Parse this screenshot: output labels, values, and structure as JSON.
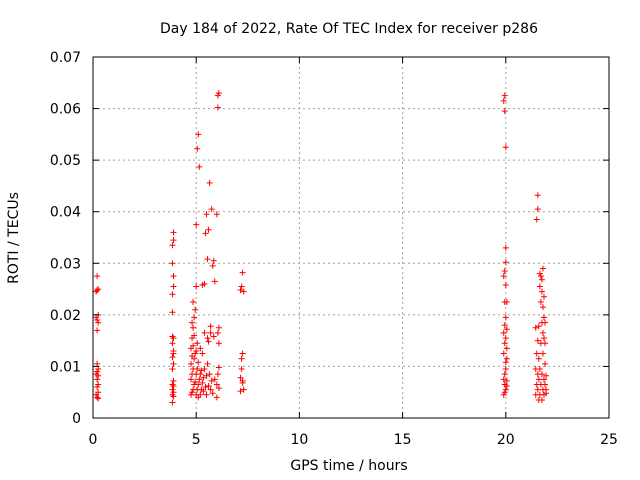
{
  "chart_data": {
    "type": "scatter",
    "title": "Day 184 of 2022, Rate Of TEC Index for receiver p286",
    "xlabel": "GPS time / hours",
    "ylabel": "ROTI / TECUs",
    "xlim": [
      0,
      25
    ],
    "ylim": [
      0,
      0.07
    ],
    "xticks": [
      0,
      5,
      10,
      15,
      20,
      25
    ],
    "yticks": [
      0,
      0.01,
      0.02,
      0.03,
      0.04,
      0.05,
      0.06,
      0.07
    ],
    "grid": true,
    "marker": "plus",
    "color": "#ff0000",
    "series": [
      {
        "x": [
          0.15,
          0.15,
          0.15,
          0.15,
          0.2,
          0.2,
          0.2,
          0.2,
          0.2,
          0.2,
          0.2,
          0.2,
          0.2,
          0.25,
          0.25,
          0.25,
          0.25,
          0.25,
          0.25,
          0.25,
          0.25,
          3.85,
          3.85,
          3.85,
          3.85,
          3.85,
          3.85,
          3.85,
          3.85,
          3.85,
          3.85,
          3.85,
          3.85,
          3.9,
          3.9,
          3.9,
          3.9,
          3.9,
          3.9,
          3.9,
          3.9,
          3.9,
          3.9,
          3.9,
          3.9,
          4.75,
          4.75,
          4.75,
          4.75,
          4.8,
          4.8,
          4.8,
          4.8,
          4.8,
          4.85,
          4.85,
          4.85,
          4.85,
          4.85,
          4.9,
          4.9,
          4.9,
          4.9,
          4.95,
          4.95,
          4.95,
          5.0,
          5.0,
          5.0,
          5.0,
          5.0,
          5.05,
          5.05,
          5.05,
          5.05,
          5.1,
          5.1,
          5.1,
          5.1,
          5.15,
          5.15,
          5.2,
          5.2,
          5.2,
          5.25,
          5.25,
          5.3,
          5.3,
          5.3,
          5.35,
          5.35,
          5.4,
          5.4,
          5.4,
          5.45,
          5.45,
          5.5,
          5.5,
          5.5,
          5.55,
          5.55,
          5.55,
          5.6,
          5.6,
          5.6,
          5.65,
          5.65,
          5.7,
          5.7,
          5.7,
          5.75,
          5.75,
          5.8,
          5.8,
          5.85,
          5.85,
          5.9,
          5.9,
          6.0,
          6.0,
          6.0,
          6.05,
          6.05,
          6.05,
          6.05,
          6.1,
          6.1,
          6.1,
          6.1,
          6.1,
          7.15,
          7.15,
          7.15,
          7.2,
          7.2,
          7.2,
          7.25,
          7.25,
          7.25,
          7.25,
          7.3,
          7.3,
          19.9,
          19.9,
          19.9,
          19.9,
          19.9,
          19.9,
          19.95,
          19.95,
          19.95,
          19.95,
          19.95,
          19.95,
          19.95,
          19.95,
          19.95,
          20.0,
          20.0,
          20.0,
          20.0,
          20.0,
          20.0,
          20.0,
          20.0,
          20.0,
          20.05,
          20.05,
          20.05,
          20.05,
          20.05,
          20.05,
          21.45,
          21.45,
          21.45,
          21.5,
          21.5,
          21.5,
          21.55,
          21.55,
          21.55,
          21.55,
          21.55,
          21.6,
          21.6,
          21.6,
          21.6,
          21.65,
          21.65,
          21.65,
          21.65,
          21.7,
          21.7,
          21.7,
          21.7,
          21.75,
          21.75,
          21.75,
          21.75,
          21.75,
          21.8,
          21.8,
          21.8,
          21.8,
          21.8,
          21.85,
          21.85,
          21.85,
          21.85,
          21.85,
          21.9,
          21.9,
          21.9,
          21.9,
          21.95,
          21.95,
          21.95
        ],
        "y": [
          0.0045,
          0.0085,
          0.0195,
          0.0245,
          0.004,
          0.006,
          0.0075,
          0.009,
          0.0105,
          0.017,
          0.019,
          0.0248,
          0.0275,
          0.0038,
          0.005,
          0.0065,
          0.0082,
          0.0095,
          0.0185,
          0.02,
          0.025,
          0.003,
          0.0045,
          0.0055,
          0.0065,
          0.0095,
          0.0118,
          0.0145,
          0.0158,
          0.0205,
          0.024,
          0.03,
          0.0335,
          0.0042,
          0.005,
          0.0062,
          0.0072,
          0.0105,
          0.0125,
          0.013,
          0.0155,
          0.0255,
          0.0275,
          0.0345,
          0.036,
          0.0045,
          0.0075,
          0.0105,
          0.0135,
          0.005,
          0.0085,
          0.012,
          0.0155,
          0.0185,
          0.0055,
          0.0095,
          0.014,
          0.0175,
          0.0225,
          0.0065,
          0.0115,
          0.016,
          0.0195,
          0.007,
          0.0125,
          0.021,
          0.0045,
          0.0085,
          0.013,
          0.0255,
          0.0375,
          0.0055,
          0.0095,
          0.0145,
          0.0522,
          0.004,
          0.0065,
          0.0108,
          0.055,
          0.0075,
          0.0487,
          0.0045,
          0.0085,
          0.0135,
          0.0055,
          0.0092,
          0.0068,
          0.0125,
          0.0258,
          0.0052,
          0.0078,
          0.0095,
          0.0165,
          0.026,
          0.006,
          0.0358,
          0.0045,
          0.0082,
          0.0395,
          0.0105,
          0.0155,
          0.0308,
          0.0062,
          0.0148,
          0.0365,
          0.0085,
          0.0456,
          0.0055,
          0.0165,
          0.0178,
          0.0072,
          0.0405,
          0.0048,
          0.0295,
          0.0158,
          0.0305,
          0.0075,
          0.0265,
          0.004,
          0.0065,
          0.0395,
          0.0085,
          0.0165,
          0.0602,
          0.0625,
          0.0058,
          0.0098,
          0.0145,
          0.0175,
          0.063,
          0.0052,
          0.0078,
          0.0248,
          0.0095,
          0.0115,
          0.0255,
          0.0068,
          0.0072,
          0.0125,
          0.0282,
          0.0055,
          0.0245,
          0.0045,
          0.0075,
          0.0125,
          0.0165,
          0.0275,
          0.0615,
          0.005,
          0.0085,
          0.0145,
          0.018,
          0.0225,
          0.0285,
          0.0595,
          0.0625,
          0.0065,
          0.0055,
          0.0095,
          0.0108,
          0.0155,
          0.0195,
          0.0258,
          0.0302,
          0.033,
          0.0525,
          0.0062,
          0.0072,
          0.0115,
          0.0135,
          0.0172,
          0.0225,
          0.0045,
          0.0095,
          0.0175,
          0.0065,
          0.0125,
          0.0385,
          0.0055,
          0.0085,
          0.015,
          0.0405,
          0.0432,
          0.0035,
          0.0075,
          0.0115,
          0.0178,
          0.0045,
          0.0095,
          0.0255,
          0.028,
          0.0065,
          0.0145,
          0.0225,
          0.0275,
          0.0035,
          0.0085,
          0.0185,
          0.0245,
          0.0268,
          0.0055,
          0.0125,
          0.0165,
          0.0215,
          0.029,
          0.0045,
          0.0075,
          0.0155,
          0.0195,
          0.0235,
          0.0065,
          0.0105,
          0.0145,
          0.0185,
          0.0055,
          0.0082,
          0.0048
        ]
      }
    ]
  }
}
